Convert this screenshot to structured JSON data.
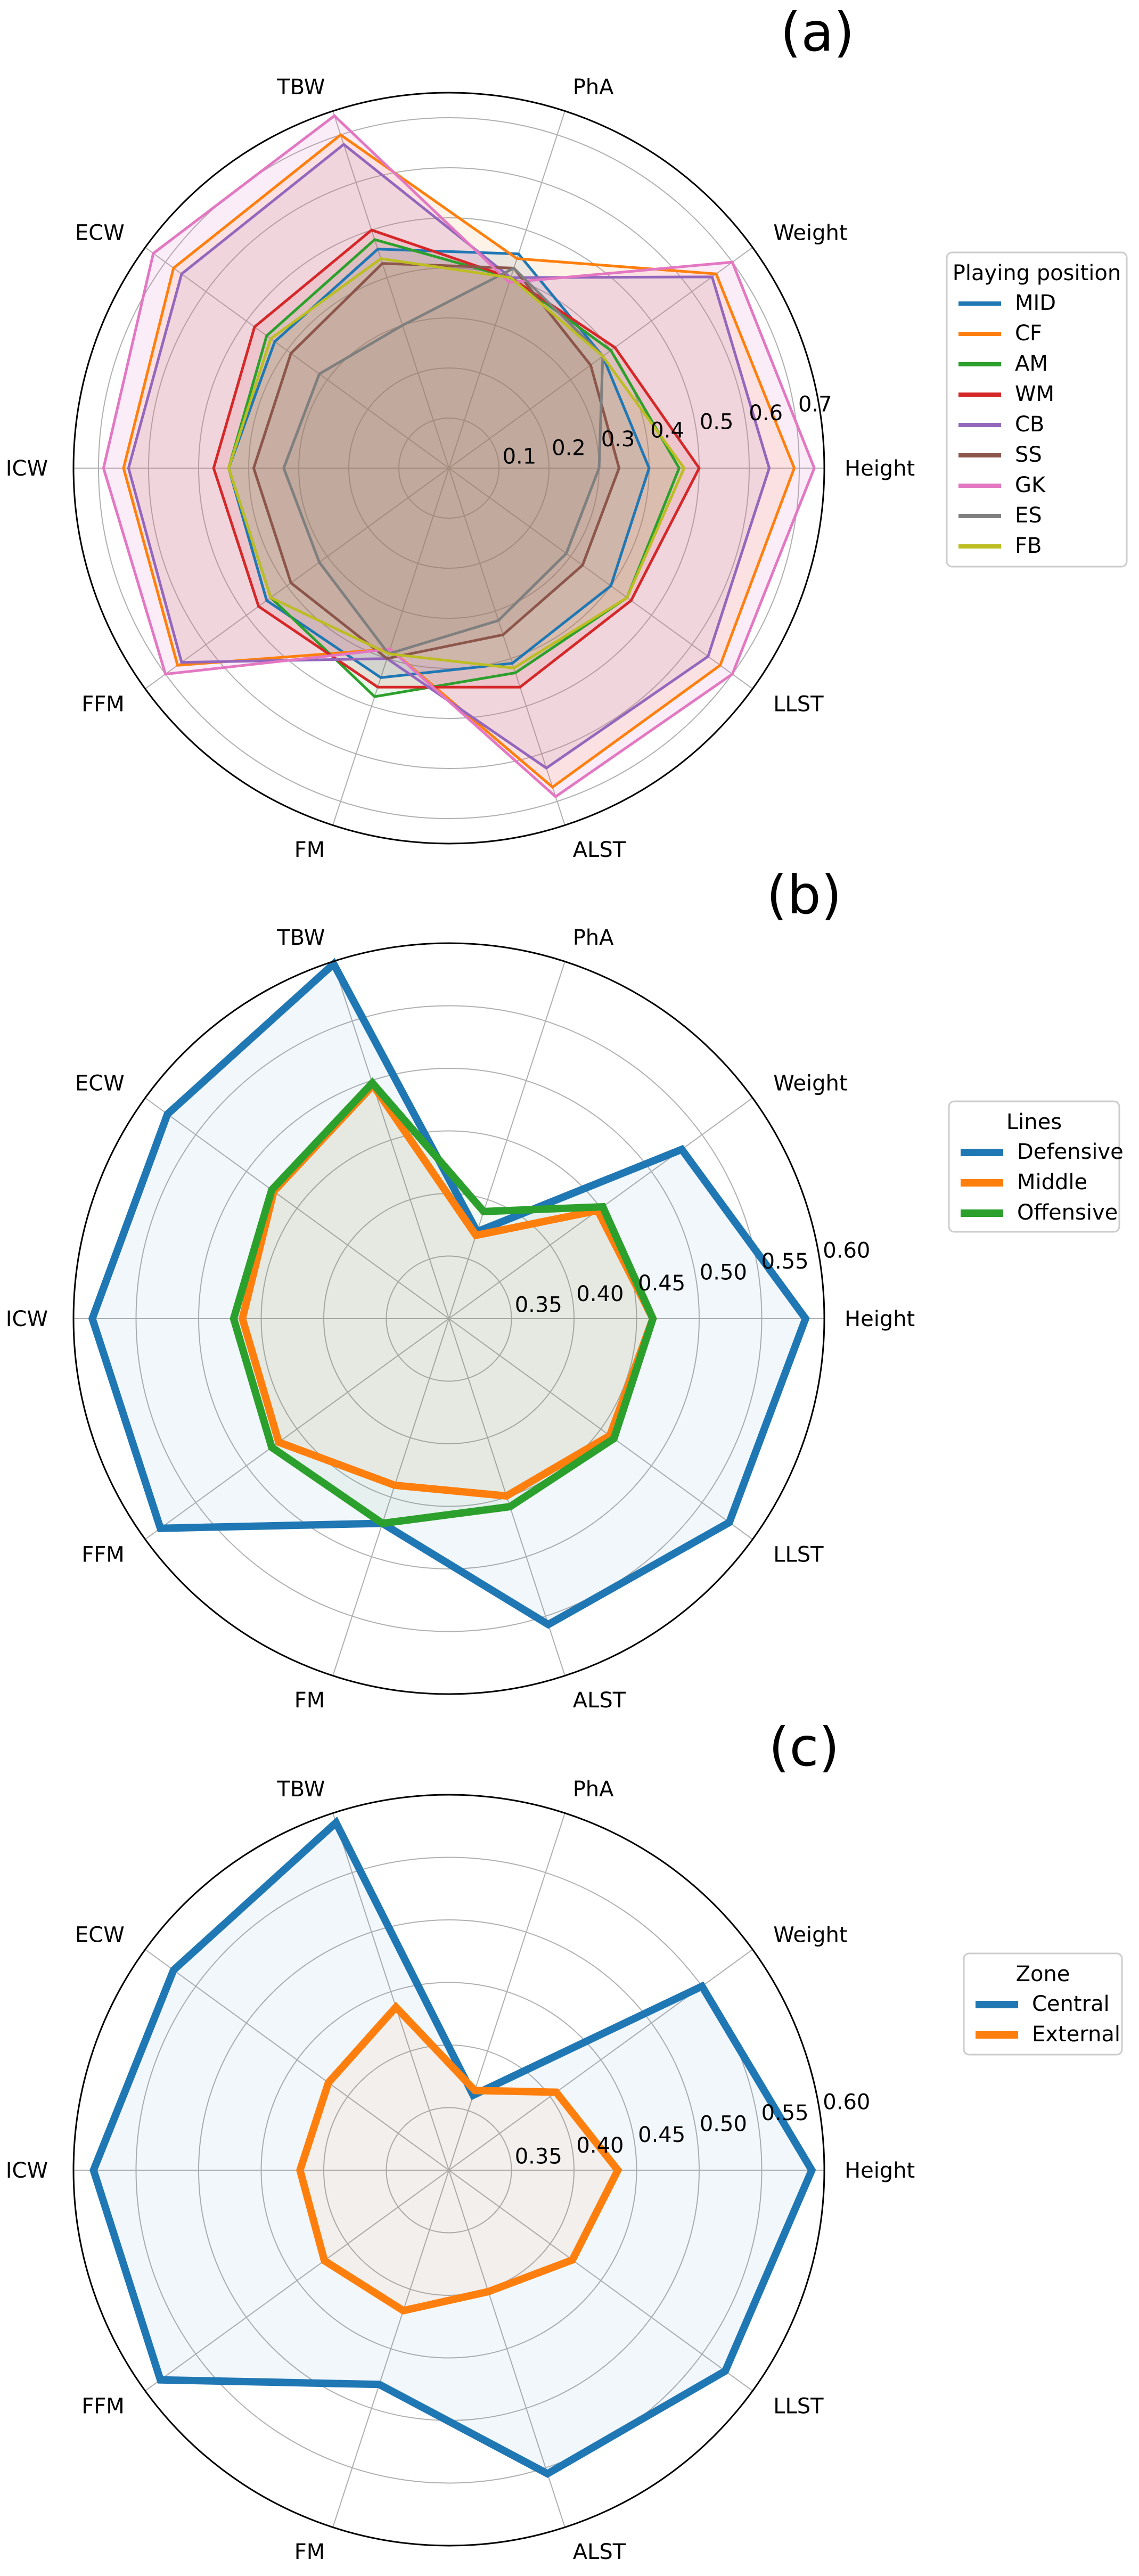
{
  "chart_data": [
    {
      "type": "radar",
      "panel_label": "(a)",
      "axes": [
        "Height",
        "Weight",
        "PhA",
        "TBW",
        "ECW",
        "ICW",
        "FFM",
        "FM",
        "ALST",
        "LLST"
      ],
      "ticks": [
        "0.1",
        "0.2",
        "0.3",
        "0.4",
        "0.5",
        "0.6",
        "0.7"
      ],
      "rlim": [
        0,
        0.75
      ],
      "legend": {
        "title": "Playing position",
        "placement": "right"
      },
      "series": [
        {
          "name": "MID",
          "color": "#1f77b4",
          "values": [
            0.4,
            0.38,
            0.45,
            0.46,
            0.43,
            0.44,
            0.45,
            0.44,
            0.41,
            0.4
          ]
        },
        {
          "name": "CF",
          "color": "#ff7f0e",
          "values": [
            0.69,
            0.66,
            0.44,
            0.7,
            0.68,
            0.65,
            0.67,
            0.38,
            0.67,
            0.67
          ]
        },
        {
          "name": "AM",
          "color": "#2ca02c",
          "values": [
            0.46,
            0.4,
            0.4,
            0.48,
            0.45,
            0.44,
            0.44,
            0.48,
            0.43,
            0.44
          ]
        },
        {
          "name": "WM",
          "color": "#d62728",
          "values": [
            0.5,
            0.41,
            0.4,
            0.5,
            0.48,
            0.47,
            0.47,
            0.46,
            0.46,
            0.45
          ]
        },
        {
          "name": "CB",
          "color": "#9467bd",
          "values": [
            0.64,
            0.65,
            0.4,
            0.68,
            0.66,
            0.64,
            0.66,
            0.4,
            0.63,
            0.64
          ]
        },
        {
          "name": "SS",
          "color": "#8c564b",
          "values": [
            0.34,
            0.35,
            0.42,
            0.43,
            0.39,
            0.39,
            0.39,
            0.4,
            0.35,
            0.33
          ]
        },
        {
          "name": "GK",
          "color": "#e377c2",
          "values": [
            0.73,
            0.7,
            0.39,
            0.74,
            0.73,
            0.69,
            0.7,
            0.38,
            0.69,
            0.7
          ]
        },
        {
          "name": "ES",
          "color": "#7f7f7f",
          "values": [
            0.3,
            0.38,
            0.42,
            0.3,
            0.32,
            0.33,
            0.32,
            0.39,
            0.32,
            0.29
          ]
        },
        {
          "name": "FB",
          "color": "#bcbd22",
          "values": [
            0.47,
            0.38,
            0.4,
            0.44,
            0.44,
            0.44,
            0.44,
            0.39,
            0.42,
            0.44
          ]
        }
      ]
    },
    {
      "type": "radar",
      "panel_label": "(b)",
      "axes": [
        "Height",
        "Weight",
        "PhA",
        "TBW",
        "ECW",
        "ICW",
        "FFM",
        "FM",
        "ALST",
        "LLST"
      ],
      "ticks": [
        "0.35",
        "0.40",
        "0.45",
        "0.50",
        "0.55",
        "0.60"
      ],
      "rlim": [
        0.3,
        0.6
      ],
      "legend": {
        "title": "Lines",
        "placement": "right"
      },
      "series": [
        {
          "name": "Defensive",
          "color": "#1f77b4",
          "values": [
            0.585,
            0.53,
            0.373,
            0.598,
            0.578,
            0.585,
            0.585,
            0.472,
            0.557,
            0.577
          ]
        },
        {
          "name": "Middle",
          "color": "#ff7f0e",
          "values": [
            0.463,
            0.447,
            0.37,
            0.496,
            0.473,
            0.465,
            0.468,
            0.44,
            0.449,
            0.459
          ]
        },
        {
          "name": "Offensive",
          "color": "#2ca02c",
          "values": [
            0.463,
            0.452,
            0.39,
            0.498,
            0.475,
            0.472,
            0.475,
            0.472,
            0.458,
            0.463
          ]
        }
      ]
    },
    {
      "type": "radar",
      "panel_label": "(c)",
      "axes": [
        "Height",
        "Weight",
        "PhA",
        "TBW",
        "ECW",
        "ICW",
        "FFM",
        "FM",
        "ALST",
        "LLST"
      ],
      "ticks": [
        "0.35",
        "0.40",
        "0.45",
        "0.50",
        "0.55",
        "0.60"
      ],
      "rlim": [
        0.3,
        0.6
      ],
      "legend": {
        "title": "Zone",
        "placement": "right"
      },
      "series": [
        {
          "name": "Central",
          "color": "#1f77b4",
          "values": [
            0.59,
            0.55,
            0.363,
            0.592,
            0.572,
            0.584,
            0.585,
            0.48,
            0.555,
            0.573
          ]
        },
        {
          "name": "External",
          "color": "#ff7f0e",
          "values": [
            0.435,
            0.406,
            0.367,
            0.437,
            0.419,
            0.419,
            0.423,
            0.418,
            0.402,
            0.422
          ]
        }
      ]
    }
  ]
}
